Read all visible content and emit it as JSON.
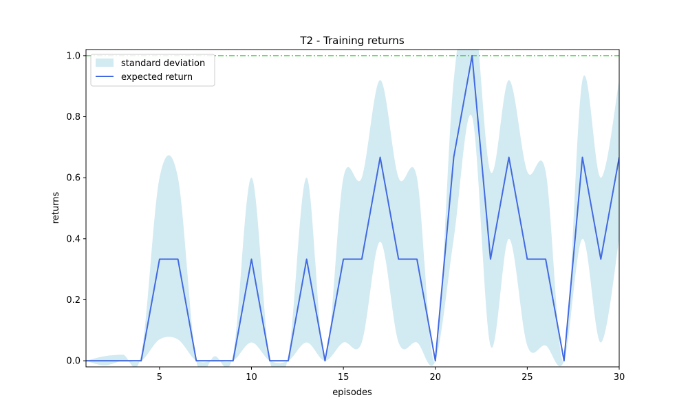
{
  "chart_data": {
    "type": "line",
    "title": "T2 - Training returns",
    "xlabel": "episodes",
    "ylabel": "returns",
    "xlim": [
      1,
      30
    ],
    "ylim": [
      -0.02,
      1.02
    ],
    "x_ticks": [
      5,
      10,
      15,
      20,
      25,
      30
    ],
    "y_ticks": [
      0.0,
      0.2,
      0.4,
      0.6,
      0.8,
      1.0
    ],
    "x_tick_labels": [
      "5",
      "10",
      "15",
      "20",
      "25",
      "30"
    ],
    "y_tick_labels": [
      "0.0",
      "0.2",
      "0.4",
      "0.6",
      "0.8",
      "1.0"
    ],
    "grid": false,
    "legend_position": "top-left",
    "x": [
      1,
      2,
      3,
      4,
      5,
      6,
      7,
      8,
      9,
      10,
      11,
      12,
      13,
      14,
      15,
      16,
      17,
      18,
      19,
      20,
      21,
      22,
      23,
      24,
      25,
      26,
      27,
      28,
      29,
      30
    ],
    "series": [
      {
        "name": "expected return",
        "color": "#4169e1",
        "values": [
          0,
          0,
          0,
          0,
          0.333,
          0.333,
          0,
          0,
          0,
          0.333,
          0,
          0,
          0.333,
          0,
          0.333,
          0.333,
          0.667,
          0.333,
          0.333,
          0,
          0.667,
          1.0,
          0.333,
          0.667,
          0.333,
          0.333,
          0,
          0.667,
          0.333,
          0.667
        ]
      }
    ],
    "band": {
      "name": "standard deviation",
      "color": "#add8e6",
      "upper": [
        0,
        0.015,
        0.02,
        0.02,
        0.6,
        0.6,
        0,
        0.015,
        0.02,
        0.6,
        0,
        0.015,
        0.6,
        0,
        0.6,
        0.6,
        0.92,
        0.6,
        0.6,
        0,
        0.92,
        1.2,
        0.62,
        0.92,
        0.62,
        0.62,
        0,
        0.92,
        0.6,
        0.92
      ],
      "lower": [
        0,
        -0.015,
        0.0,
        0.0,
        0.07,
        0.07,
        0,
        0,
        0,
        0.06,
        0,
        0,
        0.06,
        0,
        0.06,
        0.06,
        0.39,
        0.06,
        0.06,
        0,
        0.4,
        0.8,
        0.05,
        0.4,
        0.05,
        0.05,
        0,
        0.4,
        0.06,
        0.4
      ]
    },
    "reference_line": {
      "value": 1.0,
      "color": "#32cd32",
      "style": "dash-dot"
    }
  }
}
